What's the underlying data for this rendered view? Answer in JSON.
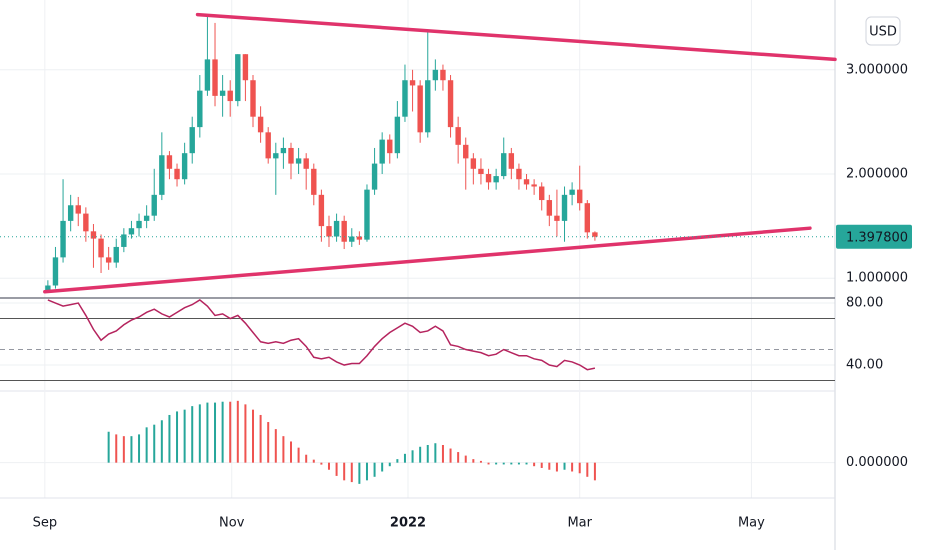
{
  "chart_data": [
    {
      "type": "candlestick",
      "currency": "USD",
      "x": [
        0,
        1,
        2,
        3,
        4,
        5,
        6,
        7,
        8,
        9,
        10,
        11,
        12,
        13,
        14,
        15,
        16,
        17,
        18,
        19,
        20,
        21,
        22,
        23,
        24,
        25,
        26,
        27,
        28,
        29,
        30,
        31,
        32,
        33,
        34,
        35,
        36,
        37,
        38,
        39,
        40,
        41,
        42,
        43,
        44,
        45,
        46,
        47,
        48,
        49,
        50,
        51,
        52,
        53,
        54,
        55,
        56,
        57,
        58,
        59,
        60,
        61,
        62,
        63,
        64,
        65,
        66,
        67,
        68,
        69,
        70,
        71,
        72
      ],
      "open": [
        0.88,
        0.93,
        1.2,
        1.55,
        1.7,
        1.62,
        1.45,
        1.38,
        1.2,
        1.15,
        1.3,
        1.42,
        1.48,
        1.55,
        1.6,
        1.8,
        2.18,
        2.05,
        1.95,
        2.2,
        2.45,
        2.8,
        3.1,
        2.75,
        2.8,
        2.7,
        3.15,
        2.9,
        2.55,
        2.4,
        2.15,
        2.2,
        2.25,
        2.1,
        2.15,
        2.05,
        1.8,
        1.5,
        1.4,
        1.55,
        1.35,
        1.4,
        1.37,
        1.85,
        2.1,
        2.33,
        2.2,
        2.55,
        2.9,
        2.85,
        2.4,
        2.9,
        3.0,
        2.9,
        2.45,
        2.28,
        2.15,
        2.05,
        2.0,
        1.92,
        1.98,
        2.2,
        2.05,
        1.95,
        1.9,
        1.88,
        1.75,
        1.6,
        1.55,
        1.8,
        1.85,
        1.72,
        1.44
      ],
      "high": [
        0.98,
        1.3,
        1.95,
        1.8,
        1.78,
        1.68,
        1.52,
        1.42,
        1.3,
        1.38,
        1.48,
        1.55,
        1.62,
        1.7,
        2.05,
        2.4,
        2.22,
        2.1,
        2.3,
        2.55,
        2.95,
        3.53,
        3.45,
        2.95,
        2.9,
        3.15,
        3.15,
        2.95,
        2.65,
        2.45,
        2.3,
        2.35,
        2.3,
        2.25,
        2.2,
        2.1,
        1.85,
        1.6,
        1.62,
        1.6,
        1.48,
        1.45,
        1.9,
        2.25,
        2.4,
        2.38,
        2.7,
        3.05,
        3.0,
        2.9,
        3.38,
        3.1,
        3.05,
        2.95,
        2.55,
        2.35,
        2.2,
        2.15,
        2.05,
        2.05,
        2.35,
        2.25,
        2.1,
        2.0,
        1.95,
        1.92,
        1.8,
        1.85,
        1.88,
        1.92,
        2.08,
        1.75,
        1.45
      ],
      "low": [
        0.86,
        0.9,
        1.15,
        1.45,
        1.5,
        1.35,
        1.1,
        1.05,
        1.08,
        1.1,
        1.25,
        1.38,
        1.4,
        1.48,
        1.55,
        1.75,
        1.95,
        1.88,
        1.9,
        2.1,
        2.35,
        2.75,
        2.65,
        2.55,
        2.55,
        2.65,
        2.7,
        2.45,
        2.3,
        2.1,
        1.8,
        2.05,
        1.95,
        2.0,
        1.85,
        1.7,
        1.35,
        1.3,
        1.35,
        1.28,
        1.3,
        1.32,
        1.35,
        1.8,
        2.0,
        2.1,
        2.15,
        2.5,
        2.6,
        2.3,
        2.35,
        2.8,
        2.8,
        2.35,
        2.1,
        1.85,
        1.9,
        1.9,
        1.85,
        1.85,
        1.95,
        1.95,
        1.85,
        1.85,
        1.8,
        1.65,
        1.5,
        1.4,
        1.35,
        1.7,
        1.65,
        1.38,
        1.36
      ],
      "close": [
        0.93,
        1.2,
        1.55,
        1.7,
        1.62,
        1.45,
        1.38,
        1.2,
        1.15,
        1.3,
        1.42,
        1.48,
        1.55,
        1.6,
        1.8,
        2.18,
        2.05,
        1.95,
        2.2,
        2.45,
        2.8,
        3.1,
        2.75,
        2.8,
        2.7,
        3.15,
        2.9,
        2.55,
        2.4,
        2.15,
        2.2,
        2.25,
        2.1,
        2.15,
        2.05,
        1.8,
        1.5,
        1.4,
        1.55,
        1.35,
        1.4,
        1.37,
        1.85,
        2.1,
        2.33,
        2.2,
        2.55,
        2.9,
        2.85,
        2.4,
        2.9,
        3.0,
        2.9,
        2.45,
        2.28,
        2.15,
        2.05,
        2.0,
        1.92,
        1.98,
        2.2,
        2.05,
        1.95,
        1.9,
        1.88,
        1.75,
        1.6,
        1.55,
        1.8,
        1.85,
        1.72,
        1.44,
        1.3978
      ],
      "up_color": "#26a69a",
      "down_color": "#ef5350",
      "ylim": [
        0.81,
        3.67
      ],
      "yticks": [
        {
          "value": 3,
          "label": "3.000000"
        },
        {
          "value": 2,
          "label": "2.000000"
        },
        {
          "value": 1,
          "label": "1.000000"
        }
      ],
      "last_price": {
        "value": 1.3978,
        "label": "1.397800"
      },
      "trendline_color": "#e0336b",
      "trendlines": [
        {
          "x": [
            19.7,
            103.6
          ],
          "values": [
            3.53,
            3.1
          ]
        },
        {
          "x": [
            -0.4,
            100.3
          ],
          "values": [
            0.87,
            1.48
          ]
        }
      ],
      "grid": true
    },
    {
      "type": "line",
      "color": "#b5245e",
      "values": [
        82,
        80,
        78,
        79,
        80,
        72,
        63,
        56,
        60,
        62,
        66,
        69,
        71,
        74,
        76,
        73,
        71,
        74,
        77,
        79,
        82,
        78,
        72,
        73,
        70,
        72,
        67,
        61,
        55,
        54,
        55,
        54,
        56,
        57,
        52,
        45,
        44,
        45,
        42,
        40,
        41,
        41,
        46,
        52,
        57,
        61,
        64,
        67,
        65,
        61,
        62,
        65,
        62,
        53,
        52,
        50,
        49,
        48,
        46,
        47,
        50,
        48,
        46,
        46,
        44,
        43,
        40,
        39,
        43,
        42,
        40,
        37,
        38
      ],
      "ylim": [
        23.9,
        82.6
      ],
      "yticks": [
        {
          "value": 80,
          "label": "80.00"
        },
        {
          "value": 40,
          "label": "40.00"
        }
      ],
      "bands": [
        70,
        50,
        30
      ],
      "band_styles": [
        "solid",
        "dashed",
        "solid"
      ],
      "grid": true
    },
    {
      "type": "histogram",
      "values": [
        null,
        null,
        null,
        null,
        null,
        null,
        null,
        null,
        0.175,
        0.16,
        0.15,
        0.15,
        0.16,
        0.2,
        0.215,
        0.24,
        0.27,
        0.29,
        0.3,
        0.32,
        0.33,
        0.34,
        0.34,
        0.345,
        0.345,
        0.35,
        0.33,
        0.3,
        0.27,
        0.23,
        0.19,
        0.15,
        0.12,
        0.085,
        0.045,
        0.017,
        -0.011,
        -0.04,
        -0.075,
        -0.1,
        -0.11,
        -0.12,
        -0.1,
        -0.08,
        -0.05,
        -0.02,
        0.02,
        0.05,
        0.07,
        0.09,
        0.1,
        0.11,
        0.1,
        0.08,
        0.06,
        0.04,
        0.02,
        0.01,
        -0.01,
        -0.01,
        -0.01,
        -0.01,
        -0.01,
        -0.01,
        -0.02,
        -0.03,
        -0.04,
        -0.05,
        -0.04,
        -0.05,
        -0.06,
        -0.08,
        -0.1
      ],
      "colors": [
        null,
        null,
        null,
        null,
        null,
        null,
        null,
        null,
        "#26a69a",
        "#ef5350",
        "#ef5350",
        "#26a69a",
        "#26a69a",
        "#26a69a",
        "#26a69a",
        "#26a69a",
        "#26a69a",
        "#26a69a",
        "#26a69a",
        "#26a69a",
        "#26a69a",
        "#26a69a",
        "#26a69a",
        "#26a69a",
        "#ef5350",
        "#ef5350",
        "#ef5350",
        "#ef5350",
        "#ef5350",
        "#ef5350",
        "#ef5350",
        "#ef5350",
        "#ef5350",
        "#ef5350",
        "#ef5350",
        "#ef5350",
        "#ef5350",
        "#ef5350",
        "#ef5350",
        "#ef5350",
        "#ef5350",
        "#26a69a",
        "#26a69a",
        "#26a69a",
        "#26a69a",
        "#26a69a",
        "#26a69a",
        "#26a69a",
        "#26a69a",
        "#26a69a",
        "#26a69a",
        "#26a69a",
        "#ef5350",
        "#ef5350",
        "#ef5350",
        "#ef5350",
        "#ef5350",
        "#ef5350",
        "#ef5350",
        "#26a69a",
        "#26a69a",
        "#26a69a",
        "#26a69a",
        "#26a69a",
        "#ef5350",
        "#ef5350",
        "#ef5350",
        "#ef5350",
        "#26a69a",
        "#ef5350",
        "#ef5350",
        "#ef5350",
        "#ef5350"
      ],
      "ylim": [
        -0.2,
        0.4
      ],
      "yticks": [
        {
          "value": 0,
          "label": "0.000000"
        }
      ],
      "xlim": [
        -6.3,
        103.6
      ],
      "xticks": [
        {
          "value": -0.4,
          "label": "Sep"
        },
        {
          "value": 24.2,
          "label": "Nov"
        },
        {
          "value": 47.4,
          "label": "2022"
        },
        {
          "value": 70,
          "label": "Mar"
        },
        {
          "value": 92.6,
          "label": "May"
        }
      ],
      "grid": true
    }
  ]
}
